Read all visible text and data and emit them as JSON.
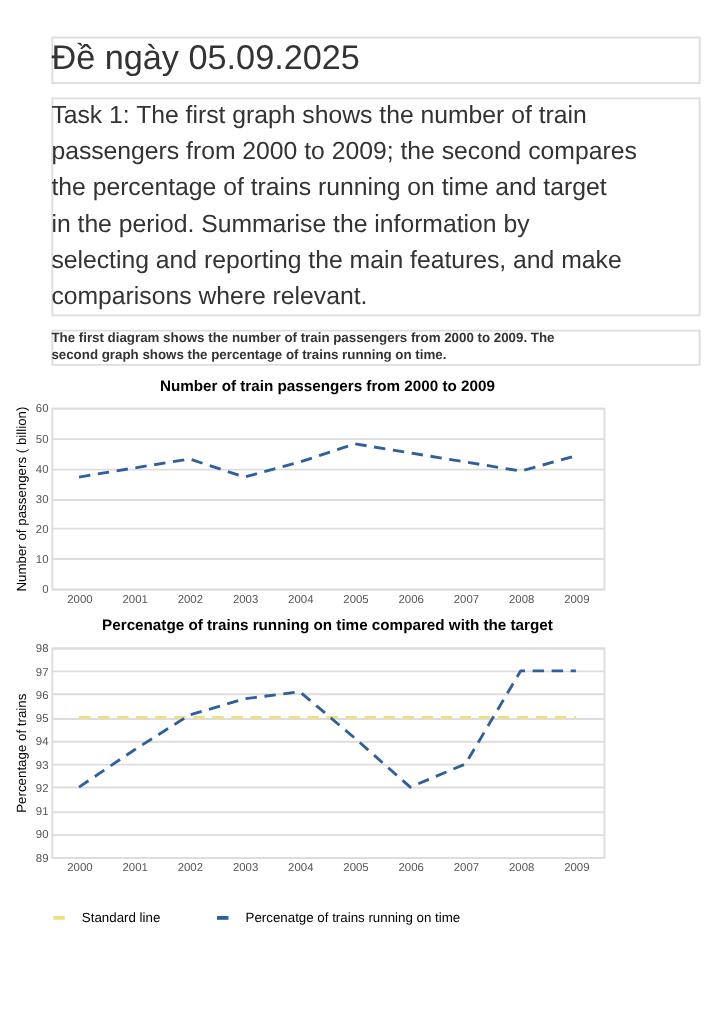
{
  "chart_data": [
    {
      "type": "line",
      "title": "Number of train passengers from 2000 to 2009",
      "ylabel": "Number of passengers ( billion)",
      "annotations": [
        "Đề ngày 05.09.2025",
        "Task 1: The first graph shows the number of train passengers from 2000 to 2009; the second compares the percentage of trains running on time and target in the period. Summarise the information by selecting and reporting the main features, and make comparisons where relevant.",
        "The first diagram shows the number of train passengers from 2000 to 2009. The second graph shows the percentage of trains running on time."
      ],
      "categories": [
        "2000",
        "2001",
        "2002",
        "2003",
        "2004",
        "2005",
        "2006",
        "2007",
        "2008",
        "2009"
      ],
      "series": [
        {
          "color": "#2f5f9e",
          "values": [
            37,
            40,
            43,
            37,
            42,
            48,
            45,
            42,
            39,
            44
          ]
        }
      ],
      "ylim": [
        0,
        60
      ],
      "yticks": [
        0,
        10,
        20,
        30,
        40,
        50,
        60
      ],
      "grid": "y",
      "line_style": "dashed",
      "legend": false
    },
    {
      "type": "line",
      "title": "Percenatge of trains running on time compared with the target",
      "ylabel": "Percentage of trains",
      "categories": [
        "2000",
        "2001",
        "2002",
        "2003",
        "2004",
        "2005",
        "2006",
        "2007",
        "2008",
        "2009"
      ],
      "series": [
        {
          "name": "Standard line",
          "color": "#f0df82",
          "values": [
            95,
            95,
            95,
            95,
            95,
            95,
            95,
            95,
            95,
            95
          ]
        },
        {
          "name": "Percenatge of trains running on time",
          "color": "#2f5f9e",
          "values": [
            92,
            93.6,
            95.1,
            95.8,
            96.1,
            94.1,
            92,
            93,
            97,
            97
          ]
        }
      ],
      "ylim": [
        89,
        98
      ],
      "yticks": [
        89,
        90,
        91,
        92,
        93,
        94,
        95,
        96,
        97,
        98
      ],
      "grid": "y",
      "line_style": "dashed",
      "legend": "bottom"
    }
  ]
}
